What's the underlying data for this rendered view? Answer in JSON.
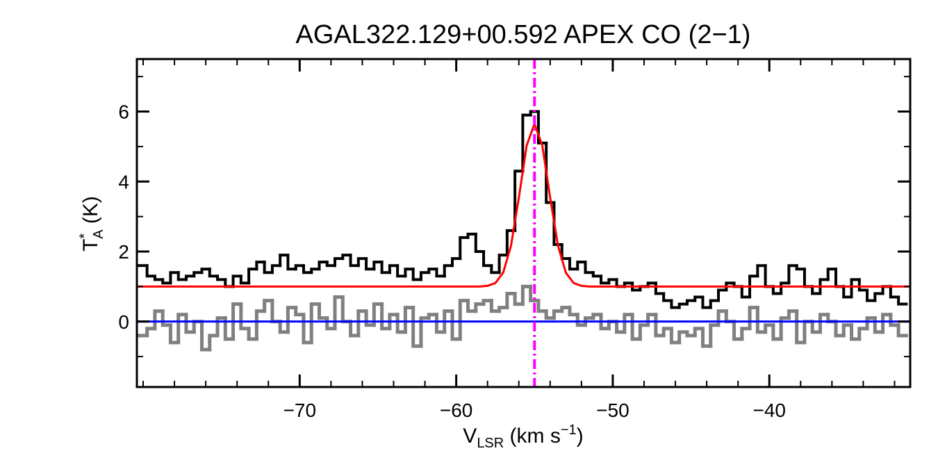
{
  "chart_data": {
    "type": "step",
    "title": "AGAL322.129+00.592  APEX CO (2−1)",
    "xlabel": {
      "main": "V",
      "sub": "LSR",
      "mid": " (km s",
      "sup": "−1",
      "end": ")"
    },
    "ylabel": {
      "main": "T",
      "sup": "*",
      "sub": "A",
      "end": " (K)"
    },
    "xlim": [
      -80.4,
      -31.0
    ],
    "ylim": [
      -1.87,
      7.5
    ],
    "xticks": [
      {
        "value": -70,
        "label": "−70"
      },
      {
        "value": -60,
        "label": "−60"
      },
      {
        "value": -50,
        "label": "−50"
      },
      {
        "value": -40,
        "label": "−40"
      }
    ],
    "xminorticks": [
      -80,
      -78,
      -76,
      -74,
      -72,
      -68,
      -66,
      -64,
      -62,
      -58,
      -56,
      -54,
      -52,
      -48,
      -46,
      -44,
      -42,
      -38,
      -36,
      -34,
      -32
    ],
    "yticks": [
      0,
      2,
      4,
      6
    ],
    "yminorticks": [
      -1,
      1,
      3,
      5,
      7
    ],
    "x": [
      -80,
      -79.5,
      -79,
      -78.5,
      -78,
      -77.5,
      -77,
      -76.5,
      -76,
      -75.5,
      -75,
      -74.5,
      -74,
      -73.5,
      -73,
      -72.5,
      -72,
      -71.5,
      -71,
      -70.5,
      -70,
      -69.5,
      -69,
      -68.5,
      -68,
      -67.5,
      -67,
      -66.5,
      -66,
      -65.5,
      -65,
      -64.5,
      -64,
      -63.5,
      -63,
      -62.5,
      -62,
      -61.5,
      -61,
      -60.5,
      -60,
      -59.5,
      -59,
      -58.5,
      -58,
      -57.5,
      -57,
      -56.5,
      -56,
      -55.5,
      -55,
      -54.5,
      -54,
      -53.5,
      -53,
      -52.5,
      -52,
      -51.5,
      -51,
      -50.5,
      -50,
      -49.5,
      -49,
      -48.5,
      -48,
      -47.5,
      -47,
      -46.5,
      -46,
      -45.5,
      -45,
      -44.5,
      -44,
      -43.5,
      -43,
      -42.5,
      -42,
      -41.5,
      -41,
      -40.5,
      -40,
      -39.5,
      -39,
      -38.5,
      -38,
      -37.5,
      -37,
      -36.5,
      -36,
      -35.5,
      -35,
      -34.5,
      -34,
      -33.5,
      -33,
      -32.5,
      -32,
      -31.5
    ],
    "channel_width": 0.5,
    "series": [
      {
        "color": "#808080",
        "width": 5,
        "values": [
          -0.4,
          -0.2,
          0.3,
          -0.1,
          -0.6,
          0.2,
          -0.3,
          0.0,
          -0.8,
          -0.4,
          0.1,
          -0.5,
          0.5,
          -0.2,
          -0.5,
          0.3,
          0.6,
          0.0,
          -0.3,
          0.4,
          0.2,
          -0.6,
          0.5,
          0.1,
          -0.2,
          0.7,
          0.0,
          -0.4,
          0.3,
          -0.1,
          0.5,
          -0.2,
          0.2,
          -0.3,
          0.4,
          -0.7,
          0.1,
          0.2,
          -0.3,
          0.3,
          -0.5,
          0.6,
          0.3,
          0.5,
          0.6,
          0.3,
          0.4,
          0.8,
          0.5,
          1.0,
          0.6,
          0.3,
          0.1,
          0.3,
          0.4,
          0.2,
          -0.1,
          0.1,
          0.2,
          -0.2,
          0.0,
          -0.3,
          0.2,
          -0.5,
          -0.1,
          0.2,
          -0.4,
          -0.2,
          -0.6,
          -0.3,
          -0.4,
          -0.2,
          -0.7,
          -0.1,
          0.3,
          0.0,
          -0.5,
          -0.2,
          0.4,
          -0.3,
          -0.1,
          -0.5,
          0.1,
          0.3,
          -0.6,
          0.0,
          -0.3,
          0.2,
          0.0,
          -0.4,
          -0.1,
          -0.5,
          -0.2,
          0.1,
          -0.3,
          0.2,
          -0.1,
          -0.4
        ]
      },
      {
        "color": "#000000",
        "width": 4,
        "values": [
          1.6,
          1.3,
          1.2,
          1.1,
          1.4,
          1.2,
          1.3,
          1.4,
          1.5,
          1.3,
          1.2,
          1.0,
          1.3,
          1.1,
          1.5,
          1.7,
          1.4,
          1.6,
          1.9,
          1.5,
          1.6,
          1.4,
          1.5,
          1.7,
          1.6,
          1.8,
          1.9,
          1.6,
          1.8,
          1.5,
          1.7,
          1.4,
          1.6,
          1.3,
          1.5,
          1.2,
          1.4,
          1.5,
          1.3,
          1.6,
          1.8,
          2.4,
          2.5,
          2.0,
          1.6,
          1.4,
          1.9,
          2.6,
          4.3,
          5.9,
          6.0,
          5.1,
          3.4,
          2.2,
          1.8,
          1.5,
          1.7,
          1.4,
          1.3,
          1.1,
          1.2,
          1.0,
          1.1,
          0.9,
          1.0,
          1.1,
          0.8,
          0.6,
          0.4,
          0.5,
          0.6,
          0.7,
          0.4,
          0.6,
          0.9,
          1.1,
          1.0,
          0.7,
          1.3,
          1.6,
          1.0,
          0.8,
          1.1,
          1.6,
          1.5,
          1.0,
          0.8,
          1.2,
          1.5,
          1.0,
          0.7,
          1.2,
          0.9,
          0.6,
          0.8,
          1.0,
          0.7,
          0.5
        ]
      }
    ],
    "fit": {
      "color": "#ff0000",
      "x": [
        -80.4,
        -58.5,
        -58,
        -57.5,
        -57,
        -56.5,
        -56,
        -55.5,
        -55,
        -54.5,
        -54,
        -53.5,
        -53,
        -52.5,
        -52,
        -51.5,
        -31.0
      ],
      "values": [
        1.0,
        1.0,
        1.02,
        1.1,
        1.4,
        2.17,
        3.54,
        5.03,
        5.65,
        5.03,
        3.54,
        2.17,
        1.4,
        1.1,
        1.02,
        1.0,
        1.0
      ]
    },
    "hline": {
      "value": 0,
      "color": "#0000ff"
    },
    "vline": {
      "value": -55,
      "color": "#ff00ff"
    }
  }
}
